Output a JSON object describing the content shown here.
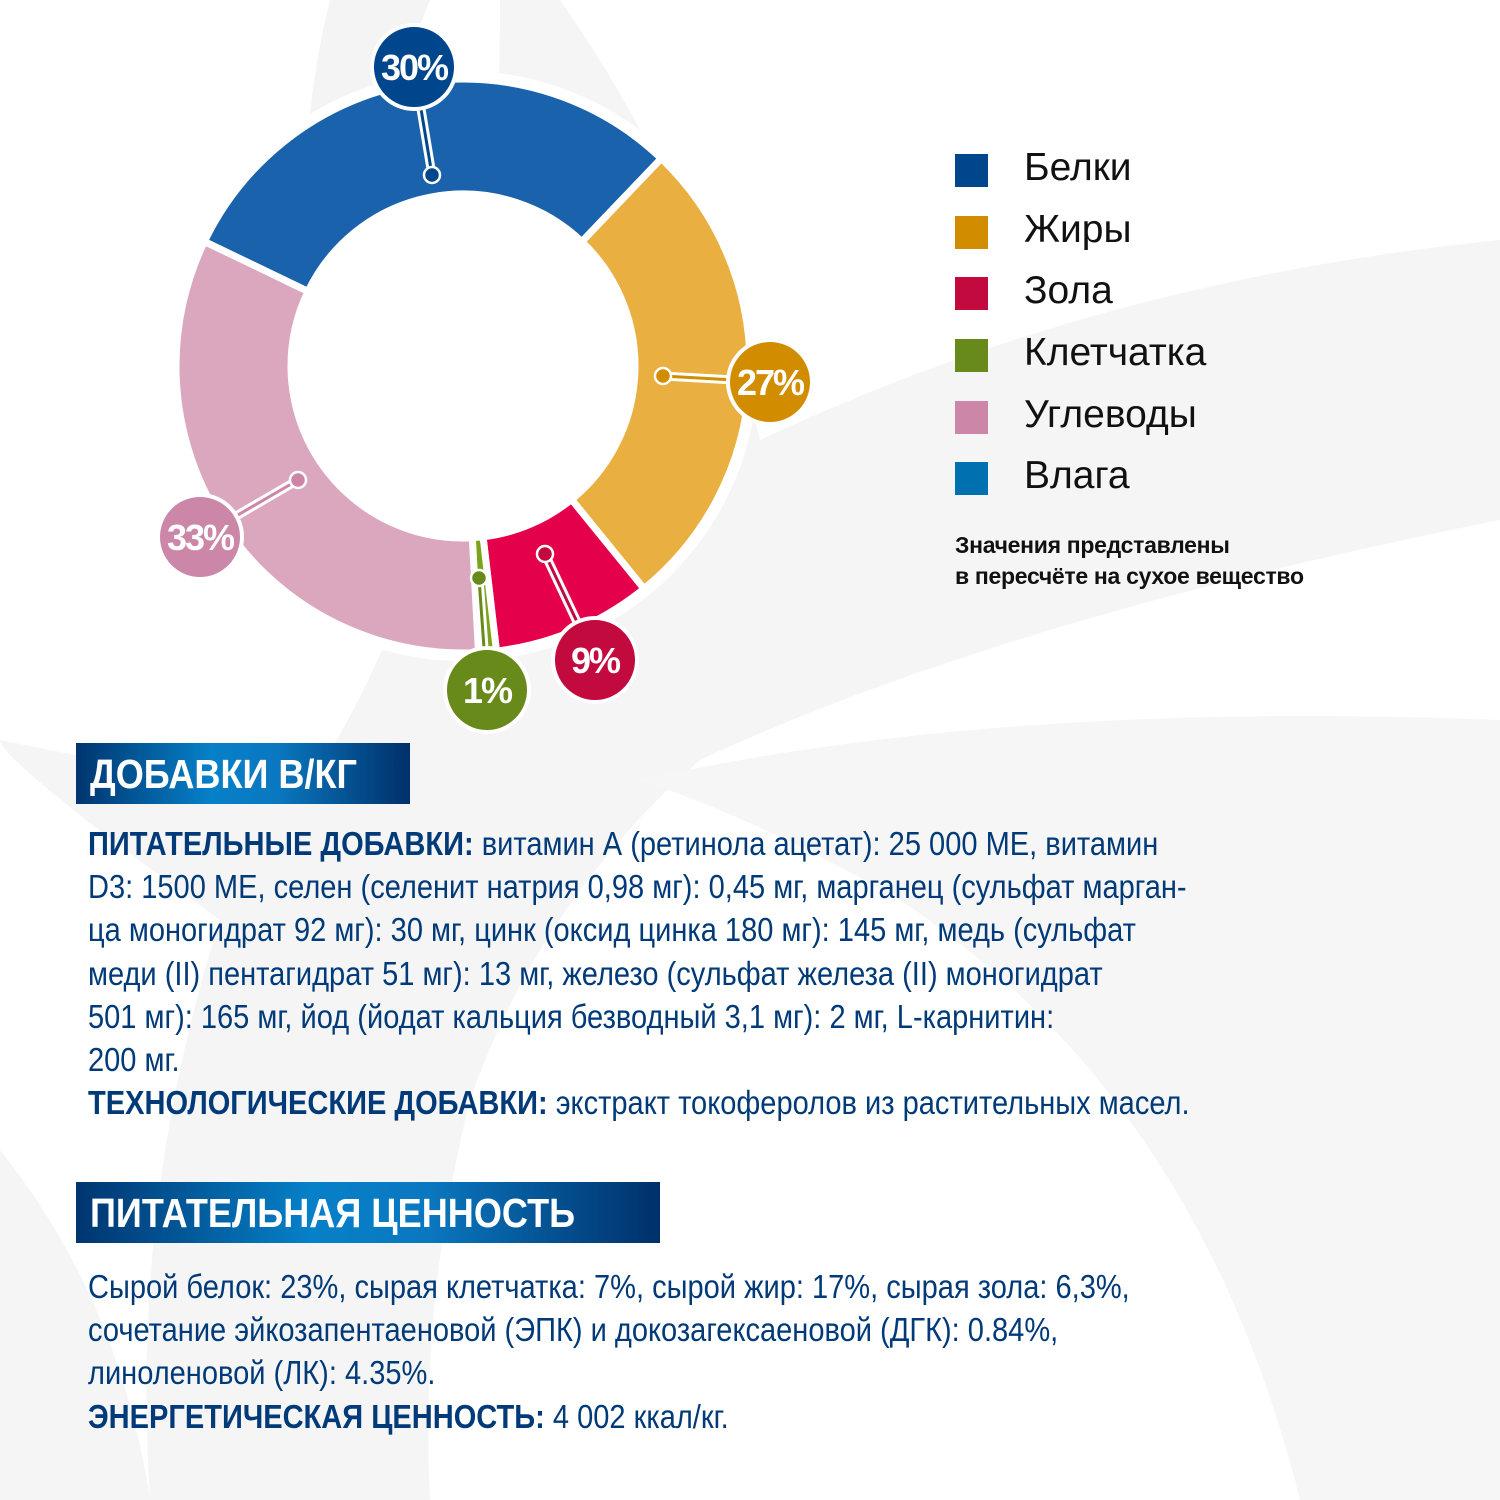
{
  "colors": {
    "background_swoosh": "#f4f4f4",
    "text_blue": "#003a78",
    "header_gradient": [
      "#00356f",
      "#0680c8",
      "#00306a"
    ]
  },
  "chart_data": {
    "type": "pie",
    "variant": "donut",
    "title": "",
    "categories": [
      "Белки",
      "Жиры",
      "Зола",
      "Клетчатка",
      "Углеводы",
      "Влага"
    ],
    "values": [
      30,
      27,
      9,
      1,
      33,
      null
    ],
    "data_labels": [
      "30%",
      "27%",
      "9%",
      "1%",
      "33%",
      ""
    ],
    "segment_colors": [
      "#1a62ab",
      "#e9af40",
      "#e4004a",
      "#7ea21a",
      "#dba7be",
      "#0070b0"
    ],
    "label_colors": [
      "#00468c",
      "#d28c00",
      "#c20a3f",
      "#688a1a",
      "#cc87a8",
      "#0070b0"
    ],
    "legend_colors": [
      "#00468c",
      "#d28c00",
      "#c20a3f",
      "#688a1a",
      "#cc87a8",
      "#0070b0"
    ],
    "legend_position": "right",
    "note_lines": [
      "Значения представлены",
      "в пересчёте на сухое вещество"
    ]
  },
  "additives": {
    "header": "ДОБАВКИ В/КГ",
    "lines": [
      {
        "bold": "ПИТАТЕЛЬНЫЕ ДОБАВКИ:",
        "text": " витамин А (ретинола ацетат): 25 000 МЕ, витамин"
      },
      {
        "bold": "",
        "text": "D3: 1500 МЕ, селен (селенит натрия 0,98 мг): 0,45 мг, марганец (сульфат марган-"
      },
      {
        "bold": "",
        "text": "ца моногидрат 92 мг): 30 мг, цинк (оксид цинка 180 мг): 145 мг, медь (сульфат"
      },
      {
        "bold": "",
        "text": "меди (II) пентагидрат 51 мг): 13 мг, железо (сульфат железа (II) моногидрат"
      },
      {
        "bold": "",
        "text": "501 мг): 165 мг, йод (йодат кальция безводный 3,1 мг): 2 мг, L-карнитин:"
      },
      {
        "bold": "",
        "text": "200 мг."
      },
      {
        "bold": "ТЕХНОЛОГИЧЕСКИЕ ДОБАВКИ:",
        "text": " экстракт токоферолов из растительных масел."
      }
    ]
  },
  "nutrition": {
    "header": "ПИТАТЕЛЬНАЯ ЦЕННОСТЬ",
    "lines": [
      {
        "bold": "",
        "text": "Сырой белок: 23%, сырая клетчатка: 7%, сырой жир: 17%, сырая зола: 6,3%,"
      },
      {
        "bold": "",
        "text": "сочетание эйкозапентаеновой (ЭПК) и докозагексаеновой (ДГК): 0.84%,"
      },
      {
        "bold": "",
        "text": "линоленовой (ЛК): 4.35%."
      },
      {
        "bold": "ЭНЕРГЕТИЧЕСКАЯ ЦЕННОСТЬ:",
        "text": " 4 002 ккал/кг."
      }
    ]
  }
}
